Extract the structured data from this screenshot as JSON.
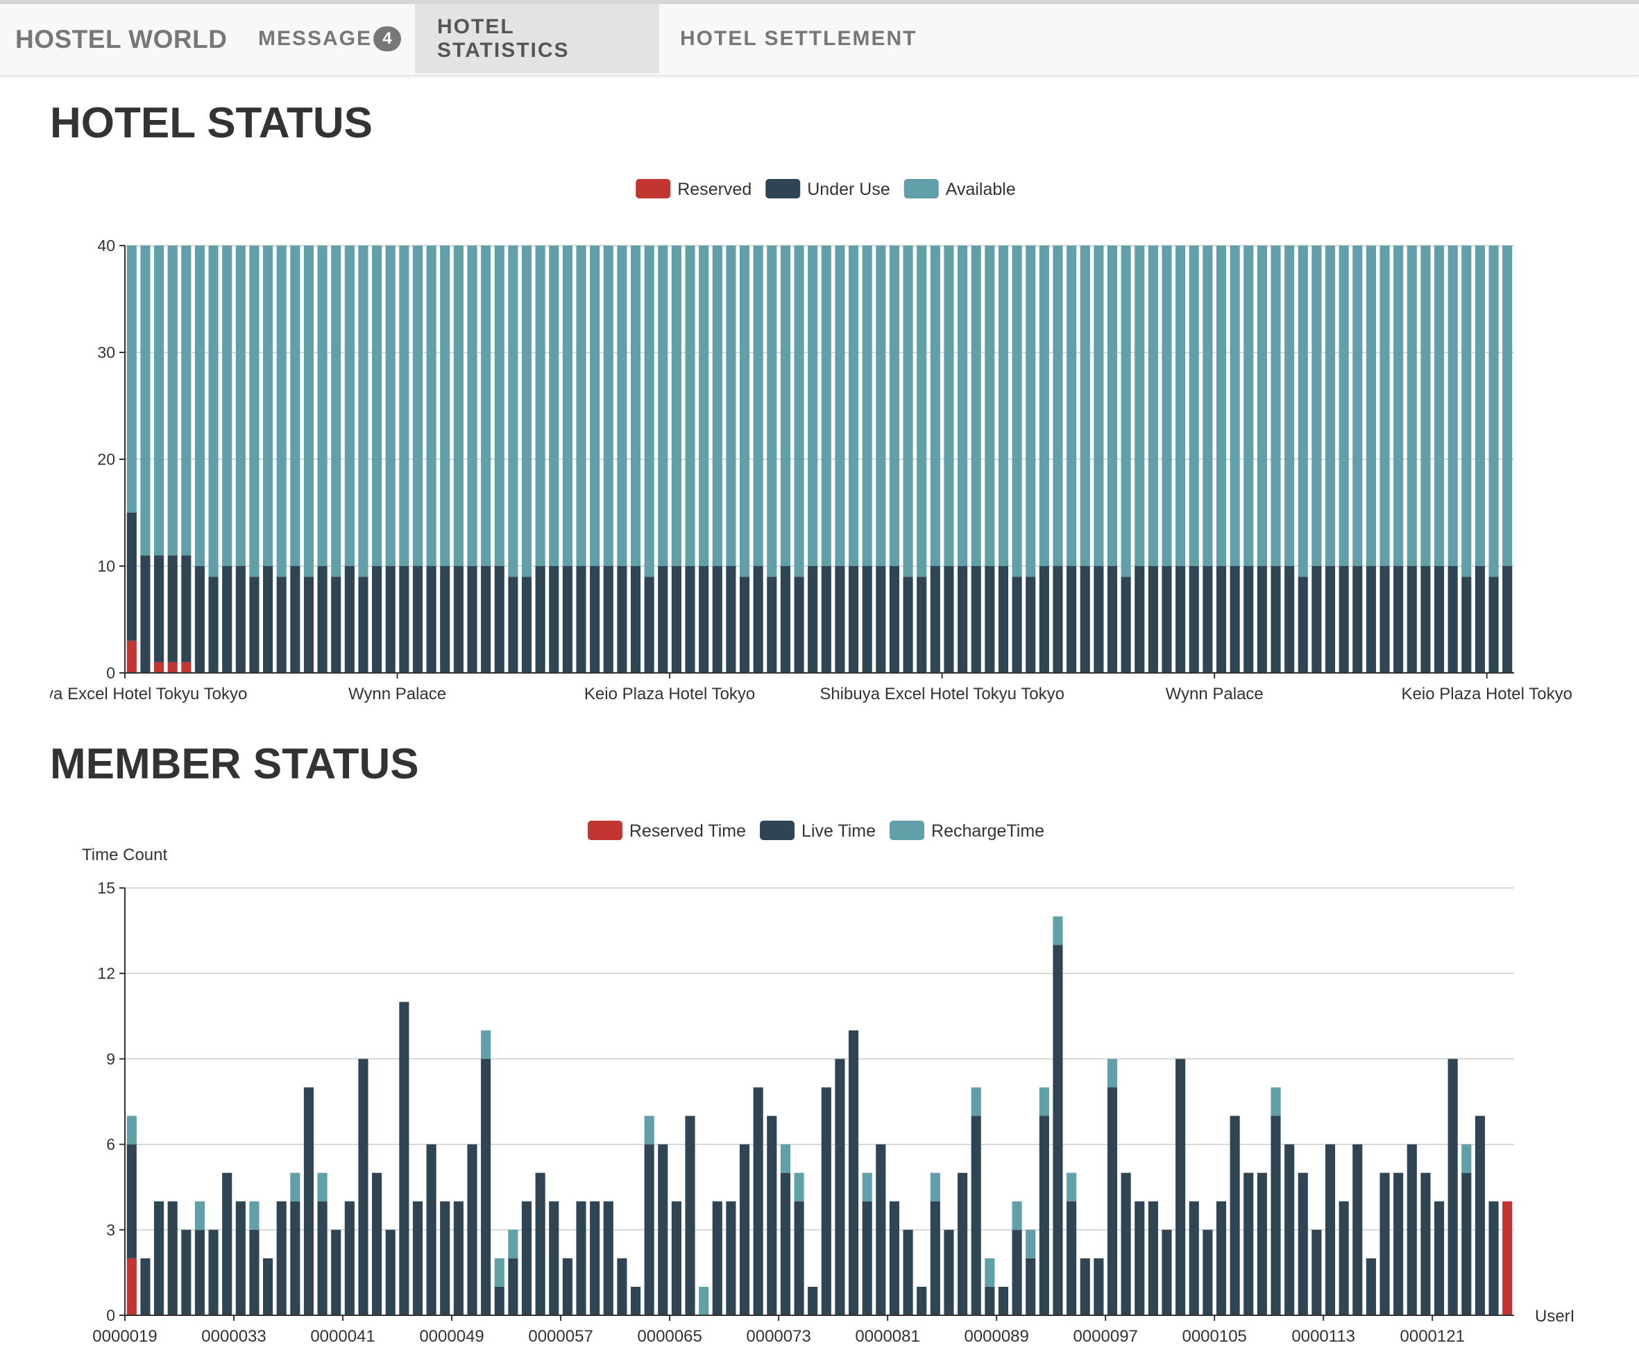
{
  "navbar": {
    "brand": "HOSTEL WORLD",
    "items": [
      {
        "label": "MESSAGE",
        "badge": "4",
        "active": false
      },
      {
        "label": "HOTEL STATISTICS",
        "active": true
      },
      {
        "label": "HOTEL SETTLEMENT",
        "active": false
      }
    ]
  },
  "sections": {
    "hotel_status_title": "HOTEL STATUS",
    "member_status_title": "MEMBER STATUS"
  },
  "colors": {
    "reserved": "#c23531",
    "under_use": "#2f4554",
    "available": "#61a0a8",
    "axis": "#333333",
    "grid": "#cccccc"
  },
  "chart_data": [
    {
      "type": "bar",
      "stacked": true,
      "title": "HOTEL STATUS",
      "legend": {
        "position": "top-center",
        "entries": [
          "Reserved",
          "Under Use",
          "Available"
        ]
      },
      "ylim": [
        0,
        40
      ],
      "y_ticks": [
        0,
        10,
        20,
        30,
        40
      ],
      "grid": true,
      "x_tick_labels": [
        "Shibuya Excel Hotel Tokyu Tokyo",
        "Wynn Palace",
        "Keio Plaza Hotel Tokyo",
        "Shibuya Excel Hotel Tokyu Tokyo",
        "Wynn Palace",
        "Keio Plaza Hotel Tokyo"
      ],
      "x_tick_every": 20,
      "series": [
        {
          "name": "Reserved",
          "values": [
            3,
            0,
            1,
            1,
            1,
            0,
            0,
            0,
            0,
            0,
            0,
            0,
            0,
            0,
            0,
            0,
            0,
            0,
            0,
            0,
            0,
            0,
            0,
            0,
            0,
            0,
            0,
            0,
            0,
            0,
            0,
            0,
            0,
            0,
            0,
            0,
            0,
            0,
            0,
            0,
            0,
            0,
            0,
            0,
            0,
            0,
            0,
            0,
            0,
            0,
            0,
            0,
            0,
            0,
            0,
            0,
            0,
            0,
            0,
            0,
            0,
            0,
            0,
            0,
            0,
            0,
            0,
            0,
            0,
            0,
            0,
            0,
            0,
            0,
            0,
            0,
            0,
            0,
            0,
            0,
            0,
            0,
            0,
            0,
            0,
            0,
            0,
            0,
            0,
            0,
            0,
            0,
            0,
            0,
            0,
            0,
            0,
            0,
            0,
            0,
            0,
            0
          ]
        },
        {
          "name": "Under Use",
          "values": [
            12,
            11,
            10,
            10,
            10,
            10,
            9,
            10,
            10,
            9,
            10,
            9,
            10,
            9,
            10,
            9,
            10,
            9,
            10,
            10,
            10,
            10,
            10,
            10,
            10,
            10,
            10,
            10,
            9,
            9,
            10,
            10,
            10,
            10,
            10,
            10,
            10,
            10,
            9,
            10,
            10,
            10,
            10,
            10,
            10,
            9,
            10,
            9,
            10,
            9,
            10,
            10,
            10,
            10,
            10,
            10,
            10,
            9,
            9,
            10,
            10,
            10,
            10,
            10,
            10,
            9,
            9,
            10,
            10,
            10,
            10,
            10,
            10,
            9,
            10,
            10,
            10,
            10,
            10,
            10,
            10,
            10,
            10,
            10,
            10,
            10,
            9,
            10,
            10,
            10,
            10,
            10,
            10,
            10,
            10,
            10,
            10,
            10,
            9,
            10,
            9,
            10
          ]
        },
        {
          "name": "Available",
          "values": [
            25,
            29,
            29,
            29,
            29,
            30,
            31,
            30,
            30,
            31,
            30,
            31,
            30,
            31,
            30,
            31,
            30,
            31,
            30,
            30,
            30,
            30,
            30,
            30,
            30,
            30,
            30,
            30,
            31,
            31,
            30,
            30,
            30,
            30,
            30,
            30,
            30,
            30,
            31,
            30,
            30,
            30,
            30,
            30,
            30,
            31,
            30,
            31,
            30,
            31,
            30,
            30,
            30,
            30,
            30,
            30,
            30,
            31,
            31,
            30,
            30,
            30,
            30,
            30,
            30,
            31,
            31,
            30,
            30,
            30,
            30,
            30,
            30,
            31,
            30,
            30,
            30,
            30,
            30,
            30,
            30,
            30,
            30,
            30,
            30,
            30,
            31,
            30,
            30,
            30,
            30,
            30,
            30,
            30,
            30,
            30,
            30,
            30,
            31,
            30,
            31,
            30
          ]
        }
      ]
    },
    {
      "type": "bar",
      "stacked": true,
      "title": "MEMBER STATUS",
      "legend": {
        "position": "top-center",
        "entries": [
          "Reserved Time",
          "Live Time",
          "RechargeTime"
        ]
      },
      "ylabel": "Time Count",
      "xlabel": "UserI",
      "ylim": [
        0,
        15
      ],
      "y_ticks": [
        0,
        3,
        6,
        9,
        12,
        15
      ],
      "grid": true,
      "x_tick_labels": [
        "0000019",
        "0000033",
        "0000041",
        "0000049",
        "0000057",
        "0000065",
        "0000073",
        "0000081",
        "0000089",
        "0000097",
        "0000105",
        "0000113",
        "0000121"
      ],
      "x_tick_every": 8,
      "series": [
        {
          "name": "Reserved Time",
          "values": [
            2,
            0,
            0,
            0,
            0,
            0,
            0,
            0,
            0,
            0,
            0,
            0,
            0,
            0,
            0,
            0,
            0,
            0,
            0,
            0,
            0,
            0,
            0,
            0,
            0,
            0,
            0,
            0,
            0,
            0,
            0,
            0,
            0,
            0,
            0,
            0,
            0,
            0,
            0,
            0,
            0,
            0,
            0,
            0,
            0,
            0,
            0,
            0,
            0,
            0,
            0,
            0,
            0,
            0,
            0,
            0,
            0,
            0,
            0,
            0,
            0,
            0,
            0,
            0,
            0,
            0,
            0,
            0,
            0,
            0,
            0,
            0,
            0,
            0,
            0,
            0,
            0,
            0,
            0,
            0,
            0,
            0,
            0,
            0,
            0,
            0,
            0,
            0,
            0,
            0,
            0,
            0,
            0,
            0,
            0,
            0,
            0,
            0,
            0,
            0,
            0,
            4
          ]
        },
        {
          "name": "Live Time",
          "values": [
            4,
            2,
            4,
            4,
            3,
            3,
            3,
            5,
            4,
            3,
            2,
            4,
            4,
            8,
            4,
            3,
            4,
            9,
            5,
            3,
            11,
            4,
            6,
            4,
            4,
            6,
            9,
            1,
            2,
            4,
            5,
            4,
            2,
            4,
            4,
            4,
            2,
            1,
            6,
            6,
            4,
            7,
            0,
            4,
            4,
            6,
            8,
            7,
            5,
            4,
            1,
            8,
            9,
            10,
            4,
            6,
            4,
            3,
            1,
            4,
            3,
            5,
            7,
            1,
            1,
            3,
            2,
            7,
            13,
            4,
            2,
            2,
            8,
            5,
            4,
            4,
            3,
            9,
            4,
            3,
            4,
            7,
            5,
            5,
            7,
            6,
            5,
            3,
            6,
            4,
            6,
            2,
            5,
            5,
            6,
            5,
            4,
            9,
            5,
            7,
            4,
            0
          ]
        },
        {
          "name": "RechargeTime",
          "values": [
            1,
            0,
            0,
            0,
            0,
            1,
            0,
            0,
            0,
            1,
            0,
            0,
            1,
            0,
            1,
            0,
            0,
            0,
            0,
            0,
            0,
            0,
            0,
            0,
            0,
            0,
            1,
            1,
            1,
            0,
            0,
            0,
            0,
            0,
            0,
            0,
            0,
            0,
            1,
            0,
            0,
            0,
            1,
            0,
            0,
            0,
            0,
            0,
            1,
            1,
            0,
            0,
            0,
            0,
            1,
            0,
            0,
            0,
            0,
            1,
            0,
            0,
            1,
            1,
            0,
            1,
            1,
            1,
            1,
            1,
            0,
            0,
            1,
            0,
            0,
            0,
            0,
            0,
            0,
            0,
            0,
            0,
            0,
            0,
            1,
            0,
            0,
            0,
            0,
            0,
            0,
            0,
            0,
            0,
            0,
            0,
            0,
            0,
            1,
            0,
            0,
            0
          ]
        }
      ]
    }
  ]
}
